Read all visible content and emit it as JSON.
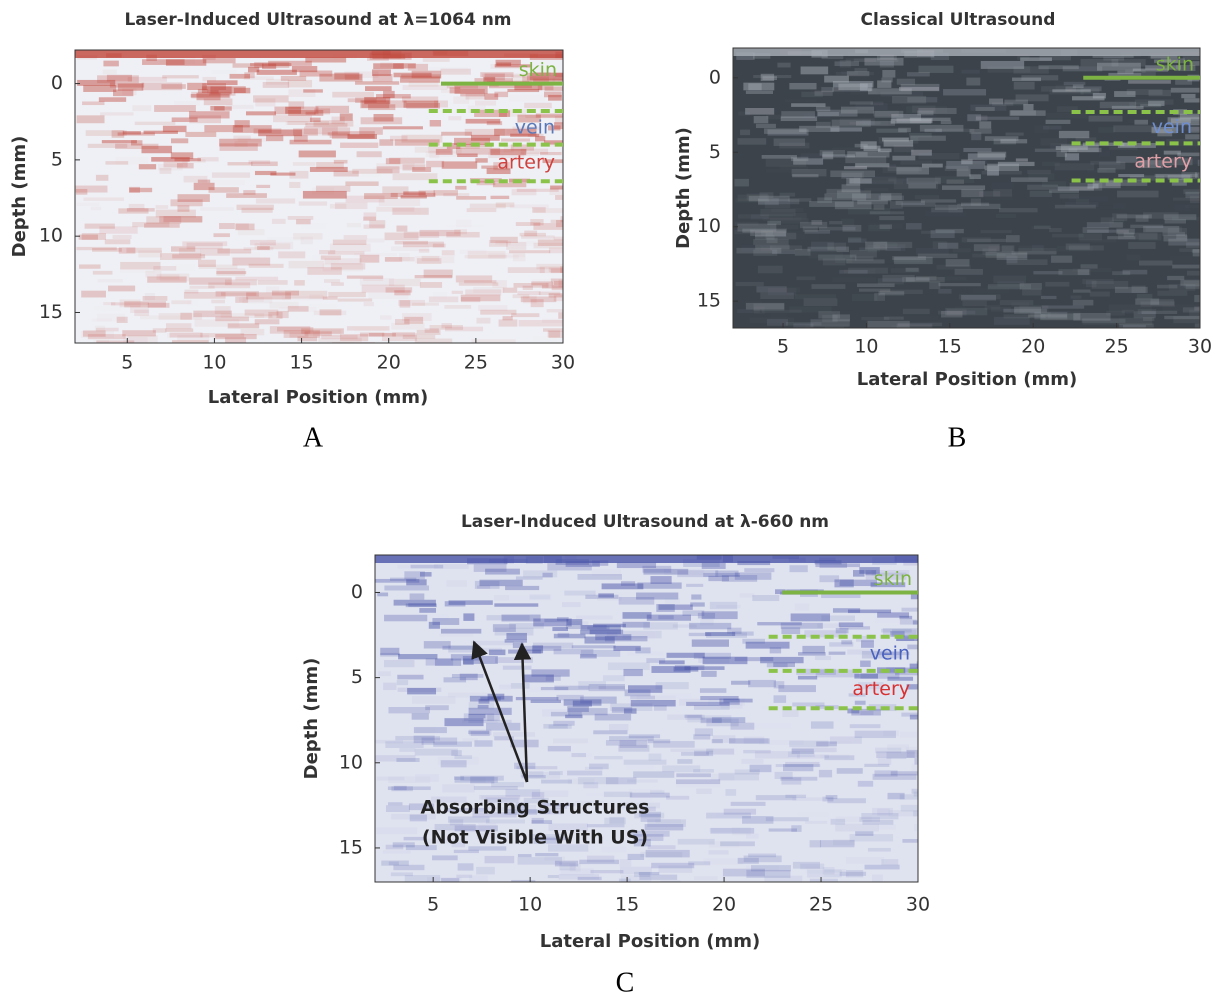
{
  "chart_data": [
    {
      "type": "image",
      "title": "Laser-Induced Ultrasound at λ=1064 nm",
      "x_label": "Lateral Position (mm)",
      "y_label": "Depth (mm)",
      "xlim": [
        2,
        30
      ],
      "ylim": [
        -2.2,
        17
      ],
      "xticks": [
        5,
        10,
        15,
        20,
        25,
        30
      ],
      "yticks": [
        0,
        5,
        10,
        15
      ],
      "panel_label": "A",
      "background": "#eef0f5",
      "texture_color": "#c0453a",
      "skin": {
        "label": "skin",
        "depth": 0,
        "x_start": 23,
        "color": "#7cb342"
      },
      "boundaries": [
        1.8,
        4.0,
        6.4
      ],
      "boundary_x_start": 22.3,
      "boundary_color": "#8bc34a",
      "regions": [
        {
          "label": "vein",
          "color": "#5a78b8"
        },
        {
          "label": "artery",
          "color": "#d0403c"
        }
      ]
    },
    {
      "type": "image",
      "title": "Classical Ultrasound",
      "x_label": "Lateral Position (mm)",
      "y_label": "Depth (mm)",
      "xlim": [
        2,
        30
      ],
      "ylim": [
        -2,
        16.8
      ],
      "xticks": [
        5,
        10,
        15,
        20,
        25,
        30
      ],
      "yticks": [
        0,
        5,
        10,
        15
      ],
      "panel_label": "B",
      "background": "#3c434b",
      "texture_color": "#aab0b8",
      "skin": {
        "label": "skin",
        "depth": 0,
        "x_start": 23,
        "color": "#7cb342"
      },
      "boundaries": [
        2.3,
        4.4,
        6.9
      ],
      "boundary_x_start": 22.3,
      "boundary_color": "#8bc34a",
      "regions": [
        {
          "label": "vein",
          "color": "#6f8fd0"
        },
        {
          "label": "artery",
          "color": "#e0a0a8"
        }
      ]
    },
    {
      "type": "image",
      "title": "Laser-Induced Ultrasound at λ-660 nm",
      "x_label": "Lateral Position (mm)",
      "y_label": "Depth (mm)",
      "xlim": [
        2,
        30
      ],
      "ylim": [
        -2.2,
        17
      ],
      "xticks": [
        5,
        10,
        15,
        20,
        25,
        30
      ],
      "yticks": [
        0,
        5,
        10,
        15
      ],
      "panel_label": "C",
      "background": "#dfe2ef",
      "texture_color": "#4a55a8",
      "skin": {
        "label": "skin",
        "depth": 0,
        "x_start": 23,
        "color": "#7cb342"
      },
      "boundaries": [
        2.6,
        4.6,
        6.8
      ],
      "boundary_x_start": 22.3,
      "boundary_color": "#8bc34a",
      "regions": [
        {
          "label": "vein",
          "color": "#4a62c0"
        },
        {
          "label": "artery",
          "color": "#d83030"
        }
      ],
      "annotation": [
        "Absorbing Structures",
        "(Not Visible With US)"
      ]
    }
  ]
}
